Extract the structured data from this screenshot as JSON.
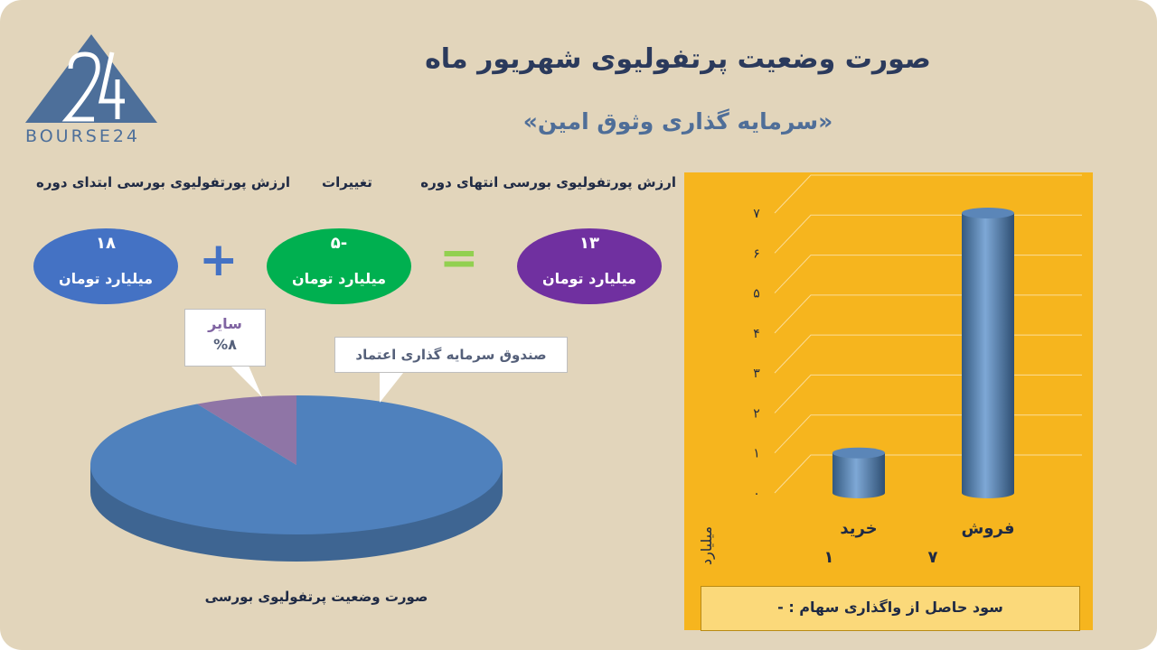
{
  "title": "صورت وضعیت پرتفولیوی شهریور ماه",
  "subtitle": "«سرمایه گذاری وثوق امین»",
  "logo_text": "BOURSE24",
  "logo_glyph": "24",
  "headers": {
    "end_value": "ارزش پورتفولیوی بورسی انتهای دوره",
    "changes": "تغییرات",
    "start_value": "ارزش پورتفولیوی بورسی ابتدای دوره"
  },
  "summary": {
    "end": {
      "value": "۱۳",
      "unit": "میلیارد تومان"
    },
    "change": {
      "value": "-۵",
      "unit": "میلیارد تومان"
    },
    "start": {
      "value": "۱۸",
      "unit": "میلیارد تومان"
    },
    "op_equals": "=",
    "op_plus": "+"
  },
  "colors": {
    "background": "#e2d5bb",
    "end_oval": "#7030a0",
    "change_oval": "#00b050",
    "start_oval": "#4472c4",
    "equals": "#92d050",
    "plus": "#4472c4",
    "pie_main": "#4f81bd",
    "pie_other": "#8064a2",
    "panel": "#f6b51e"
  },
  "chart_data": [
    {
      "type": "pie",
      "title": "صورت وضعیت پرتفولیوی بورسی",
      "slices": [
        {
          "label": "صندوق سرمایه گذاری اعتماد",
          "value": 92
        },
        {
          "label": "سایر",
          "value": 8,
          "display": "%۸"
        }
      ]
    },
    {
      "type": "bar",
      "categories": [
        "فروش",
        "خرید"
      ],
      "values": [
        7,
        1
      ],
      "value_labels": [
        "۷",
        "۱"
      ],
      "ylabel": "میلیارد تومان",
      "ylim": [
        0,
        7
      ],
      "yticks": [
        "۰",
        "۱",
        "۲",
        "۳",
        "۴",
        "۵",
        "۶",
        "۷"
      ],
      "grid": true
    }
  ],
  "profit_text": "سود حاصل از واگذاری سهام :  -"
}
